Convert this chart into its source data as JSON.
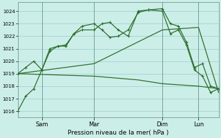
{
  "background_color": "#cceee8",
  "grid_color": "#99cccc",
  "line_color": "#2d6e2d",
  "x_ticks_labels": [
    "Sam",
    "Mar",
    "Dim",
    "Lun"
  ],
  "x_ticks_pos": [
    0.12,
    0.38,
    0.72,
    0.9
  ],
  "xlabel": "Pression niveau de la mer( hPa )",
  "ylim": [
    1015.5,
    1024.7
  ],
  "yticks": [
    1016,
    1017,
    1018,
    1019,
    1020,
    1021,
    1022,
    1023,
    1024
  ],
  "xlim": [
    0.0,
    1.0
  ],
  "line1_x": [
    0.0,
    0.04,
    0.08,
    0.12,
    0.16,
    0.2,
    0.24,
    0.28,
    0.32,
    0.38,
    0.42,
    0.46,
    0.5,
    0.55,
    0.6,
    0.65,
    0.72,
    0.76,
    0.8,
    0.84,
    0.88,
    0.92,
    0.96,
    1.0
  ],
  "line1_y": [
    1016.0,
    1017.2,
    1017.8,
    1019.3,
    1020.8,
    1021.2,
    1021.2,
    1022.2,
    1022.5,
    1022.5,
    1023.0,
    1023.1,
    1022.5,
    1022.0,
    1024.0,
    1024.1,
    1024.2,
    1023.0,
    1022.8,
    1021.5,
    1019.5,
    1019.8,
    1018.0,
    1017.8
  ],
  "line2_x": [
    0.0,
    0.04,
    0.08,
    0.12,
    0.16,
    0.2,
    0.24,
    0.28,
    0.32,
    0.38,
    0.42,
    0.46,
    0.5,
    0.55,
    0.6,
    0.65,
    0.72,
    0.76,
    0.8,
    0.84,
    0.88,
    0.92,
    0.96,
    1.0
  ],
  "line2_y": [
    1019.0,
    1019.5,
    1020.0,
    1019.3,
    1021.0,
    1021.2,
    1021.3,
    1022.2,
    1022.8,
    1023.0,
    1022.5,
    1021.9,
    1022.0,
    1022.5,
    1023.9,
    1024.1,
    1024.0,
    1022.2,
    1022.5,
    1021.3,
    1019.3,
    1018.8,
    1017.5,
    1017.8
  ],
  "line3_x": [
    0.0,
    0.38,
    0.72,
    0.9,
    1.0
  ],
  "line3_y": [
    1019.0,
    1019.8,
    1022.5,
    1022.7,
    1017.5
  ],
  "line4_x": [
    0.0,
    0.38,
    0.6,
    0.72,
    0.9,
    1.0
  ],
  "line4_y": [
    1019.0,
    1018.8,
    1018.5,
    1018.2,
    1018.0,
    1017.8
  ]
}
